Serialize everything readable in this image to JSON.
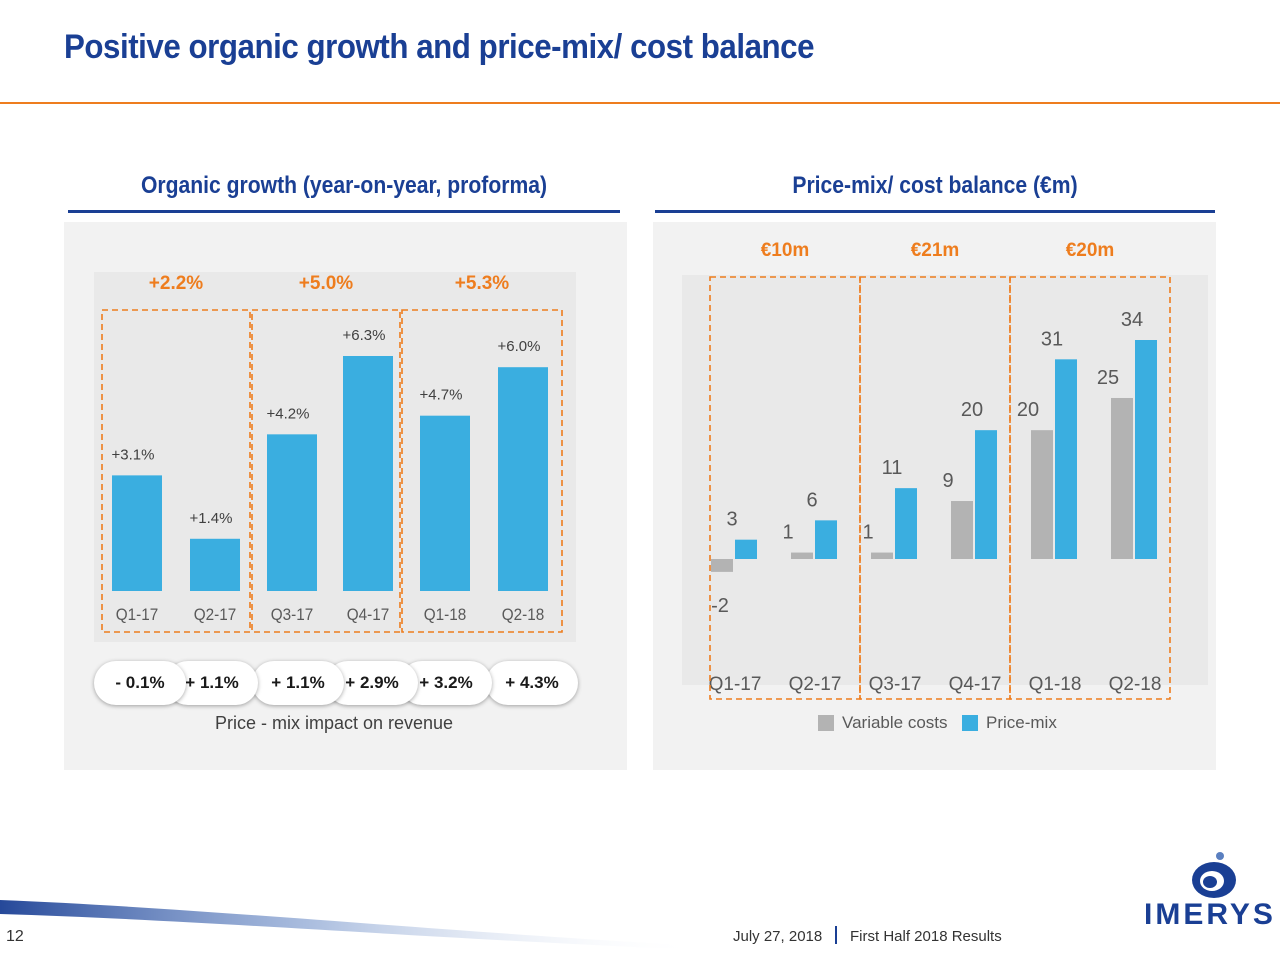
{
  "slide": {
    "title": "Positive organic growth and price-mix/ cost balance",
    "page_number": "12",
    "date": "July 27, 2018",
    "event": "First Half 2018 Results",
    "logo_text": "IMERYS",
    "colors": {
      "title": "#1a3f94",
      "accent_rule": "#ee7d1e",
      "bar_blue": "#3aaee0",
      "bar_grey": "#b3b3b3",
      "highlight": "#ee7d1e"
    }
  },
  "chart_data": [
    {
      "type": "bar",
      "title": "Organic growth (year-on-year, proforma)",
      "categories": [
        "Q1-17",
        "Q2-17",
        "Q3-17",
        "Q4-17",
        "Q1-18",
        "Q2-18"
      ],
      "series": [
        {
          "values": [
            3.1,
            1.4,
            4.2,
            6.3,
            4.7,
            6.0
          ],
          "labels": [
            "+3.1%",
            "+1.4%",
            "+4.2%",
            "+6.3%",
            "+4.7%",
            "+6.0%"
          ]
        }
      ],
      "ylim": [
        0,
        6.3
      ],
      "grid": false,
      "group_highlights": [
        "+2.2%",
        "+5.0%",
        "+5.3%"
      ],
      "price_mix_impact": {
        "caption": "Price - mix impact on revenue",
        "values": [
          "- 0.1%",
          "+ 1.1%",
          "+ 1.1%",
          "+ 2.9%",
          "+ 3.2%",
          "+ 4.3%"
        ]
      }
    },
    {
      "type": "bar",
      "title": "Price-mix/ cost balance (€m)",
      "categories": [
        "Q1-17",
        "Q2-17",
        "Q3-17",
        "Q4-17",
        "Q1-18",
        "Q2-18"
      ],
      "series": [
        {
          "name": "Variable costs",
          "values": [
            -2,
            1,
            1,
            9,
            20,
            25
          ],
          "color": "#b3b3b3"
        },
        {
          "name": "Price-mix",
          "values": [
            3,
            6,
            11,
            20,
            31,
            34
          ],
          "color": "#3aaee0"
        }
      ],
      "ylim": [
        -2,
        34
      ],
      "grid": false,
      "legend": "bottom",
      "group_highlights": [
        "€10m",
        "€21m",
        "€20m"
      ]
    }
  ]
}
